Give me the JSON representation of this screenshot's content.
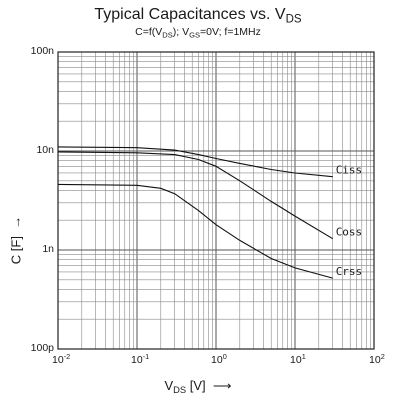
{
  "title": {
    "prefix": "Typical Capacitances vs. V",
    "sub": "DS"
  },
  "subtitle": {
    "p1": "C=f(V",
    "p1_sub": "DS",
    "p2": "); V",
    "p2_sub": "GS",
    "p3": "=0V; f=1MHz"
  },
  "y_axis": {
    "label": "C [F]",
    "arrow": "→"
  },
  "x_axis": {
    "label_main": "V",
    "label_sub": "DS",
    "label_unit": " [V]",
    "arrow": "⟶"
  },
  "y_ticks": [
    {
      "value": 1e-10,
      "label": "100p"
    },
    {
      "value": 1e-09,
      "label": "1n"
    },
    {
      "value": 1e-08,
      "label": "10n"
    },
    {
      "value": 1e-07,
      "label": "100n"
    }
  ],
  "x_ticks": [
    {
      "value": 0.01,
      "base": "10",
      "exp": "-2"
    },
    {
      "value": 0.1,
      "base": "10",
      "exp": "-1"
    },
    {
      "value": 1,
      "base": "10",
      "exp": "0"
    },
    {
      "value": 10,
      "base": "10",
      "exp": "1"
    },
    {
      "value": 100,
      "base": "10",
      "exp": "2"
    }
  ],
  "chart_data": {
    "type": "line",
    "x_scale": "log",
    "y_scale": "log",
    "xlim": [
      0.01,
      100
    ],
    "ylim": [
      1e-10,
      1e-07
    ],
    "grid": true,
    "series": [
      {
        "name": "Ciss",
        "x": [
          0.01,
          0.1,
          0.3,
          0.6,
          1,
          2,
          5,
          10,
          30
        ],
        "y": [
          1.1e-08,
          1.08e-08,
          1.02e-08,
          9.2e-09,
          8.4e-09,
          7.5e-09,
          6.5e-09,
          6e-09,
          5.5e-09
        ]
      },
      {
        "name": "Coss",
        "x": [
          0.01,
          0.1,
          0.3,
          0.6,
          1,
          2,
          5,
          10,
          30
        ],
        "y": [
          9.8e-09,
          9.6e-09,
          9.2e-09,
          8.2e-09,
          7e-09,
          5e-09,
          3.1e-09,
          2.2e-09,
          1.3e-09
        ]
      },
      {
        "name": "Crss",
        "x": [
          0.01,
          0.1,
          0.2,
          0.3,
          0.6,
          1,
          2,
          5,
          10,
          30
        ],
        "y": [
          4.6e-09,
          4.5e-09,
          4.2e-09,
          3.7e-09,
          2.5e-09,
          1.8e-09,
          1.25e-09,
          8.2e-10,
          6.6e-10,
          5.2e-10
        ]
      }
    ]
  }
}
